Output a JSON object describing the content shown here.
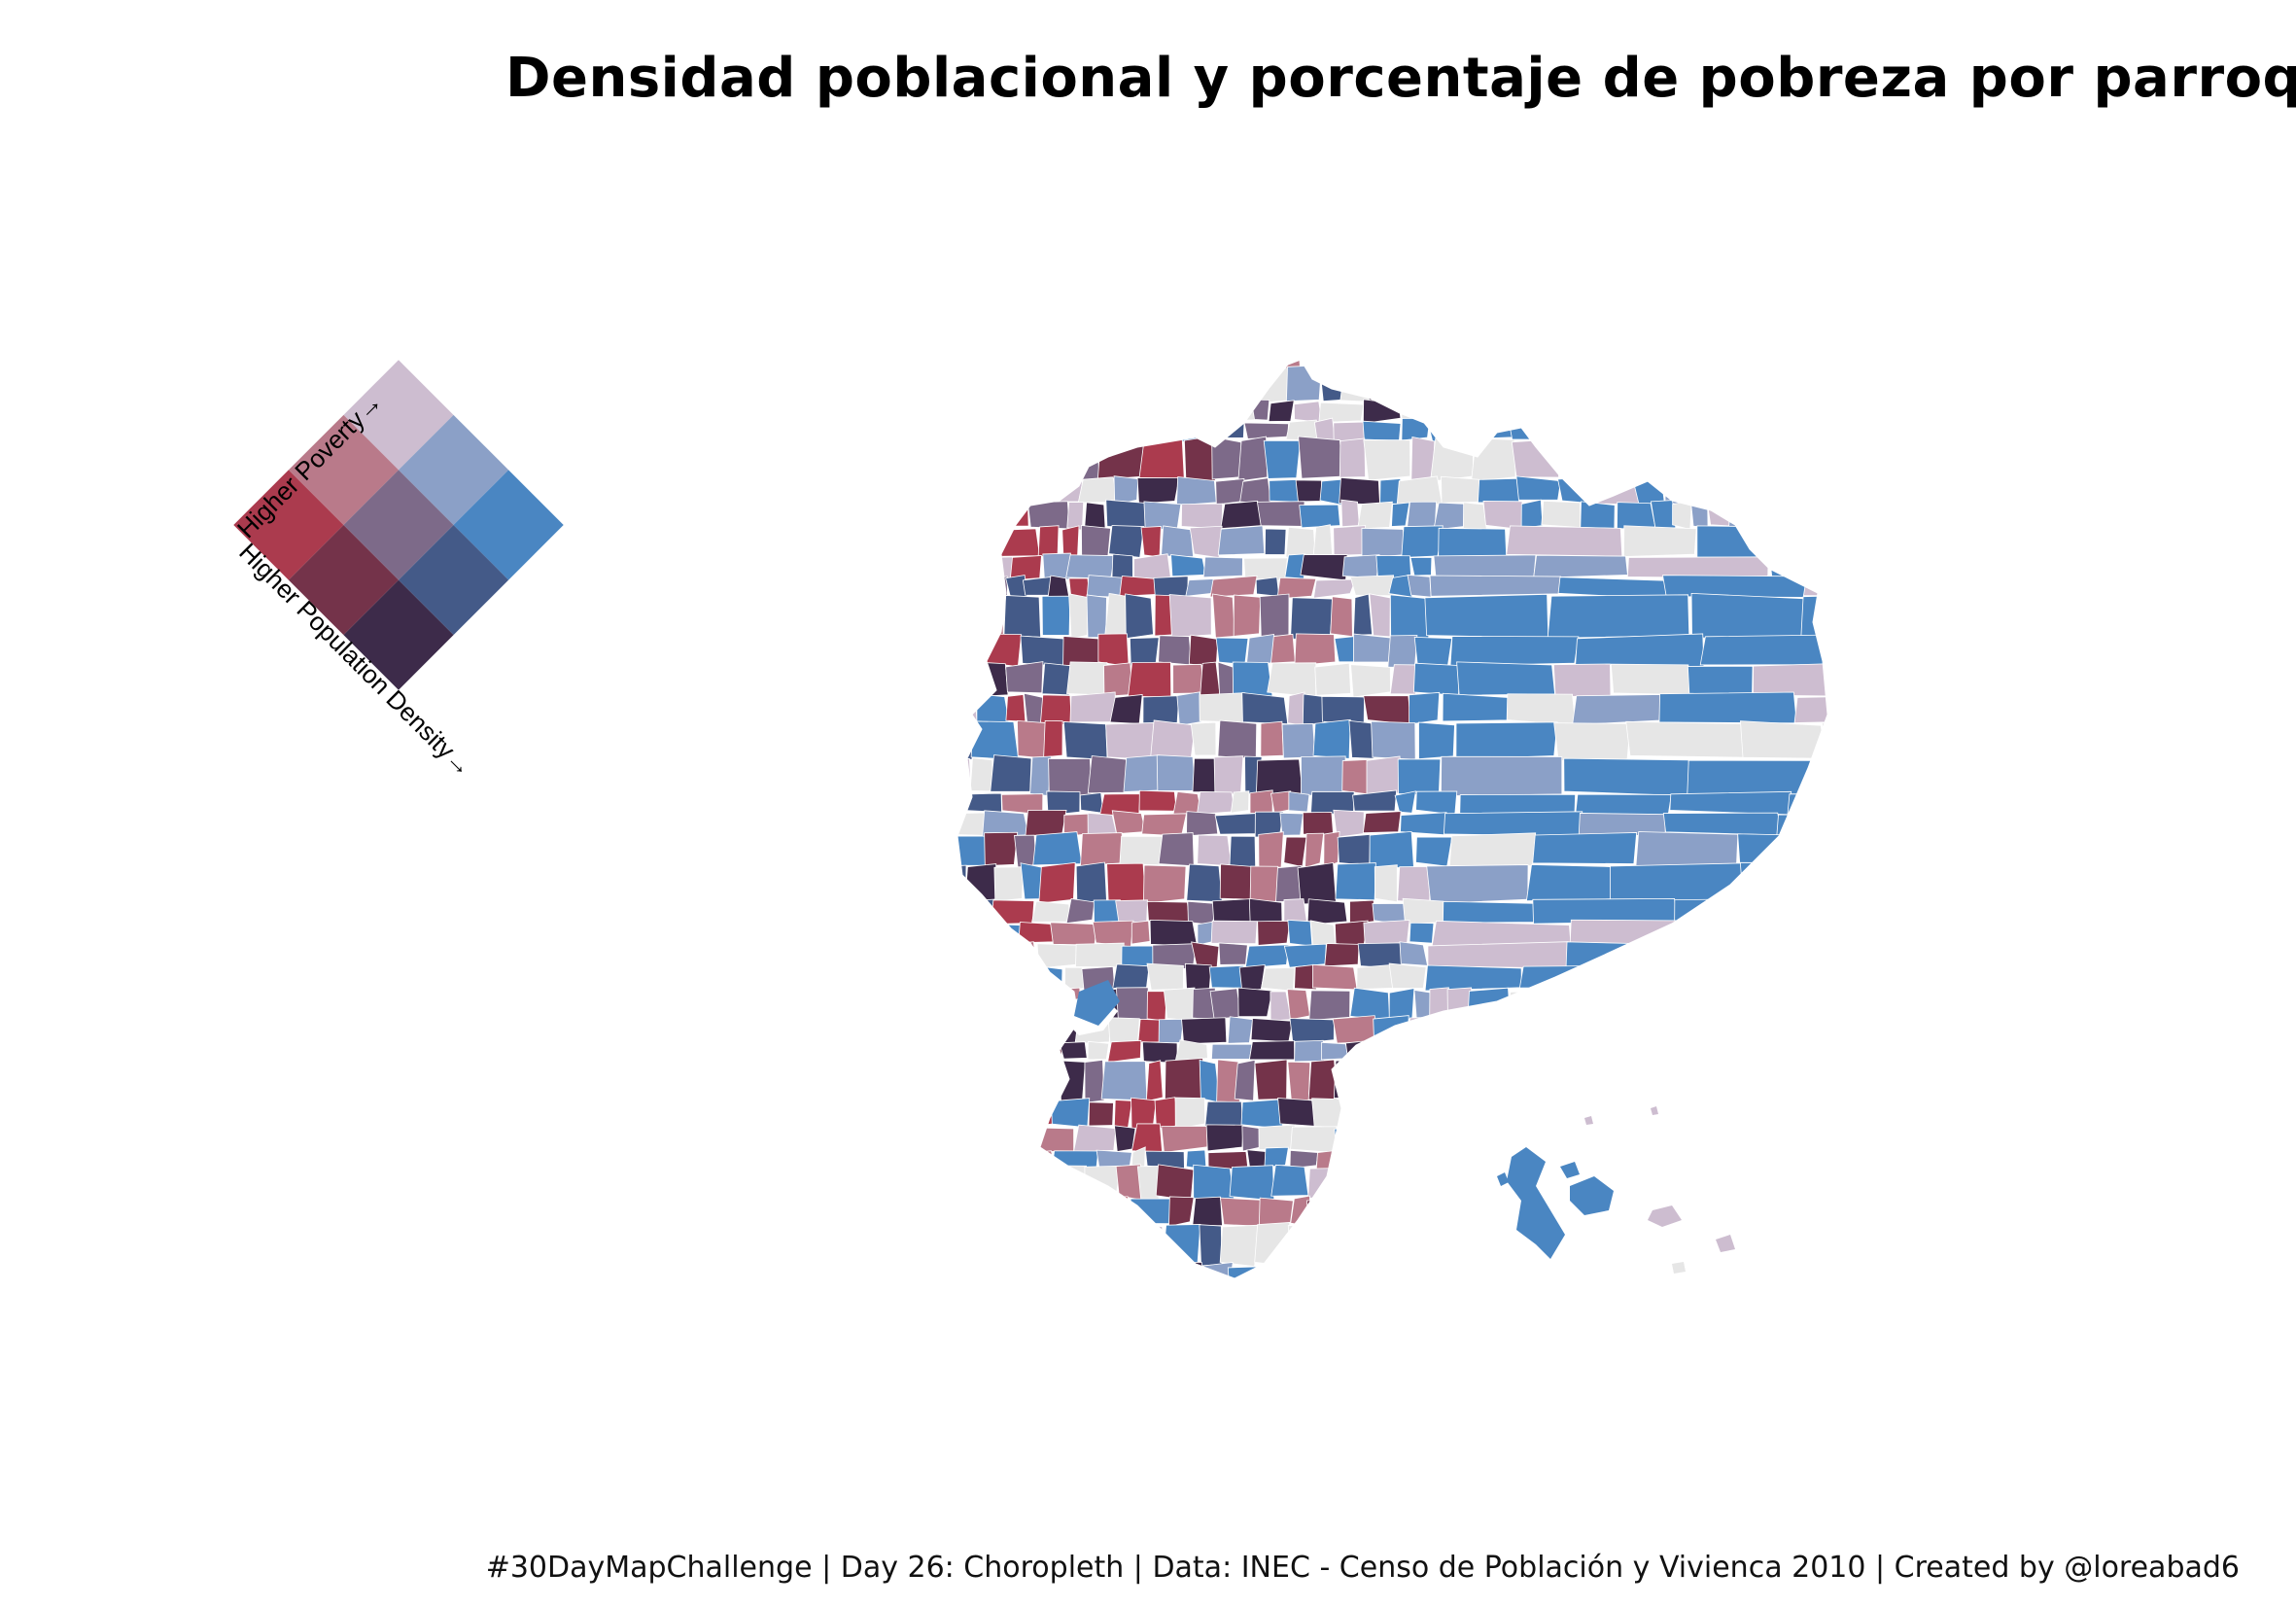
{
  "title": "Densidad poblacional y porcentaje de pobreza por parroquia",
  "caption": "#30DayMapChallenge | Day 26: Choropleth | Data: INEC - Censo de Población y Vivienca 2010 | Created by @loreabad6",
  "legend": {
    "axis_poverty_label": "Higher Poverty→",
    "axis_density_label": "Higher Population Density→",
    "palette": {
      "low_low": "#cdbdd0",
      "low_mid": "#8ba0c7",
      "low_high": "#4a86c2",
      "mid_low": "#b97a8a",
      "mid_mid": "#7d6a89",
      "mid_high": "#445a88",
      "high_low": "#ab3b4e",
      "high_mid": "#74334a",
      "high_high": "#3d2b4a"
    }
  },
  "map": {
    "subject": "Ecuador parishes (parroquias)",
    "no_data_color": "#e6e6e6",
    "border_color": "#ffffff"
  }
}
